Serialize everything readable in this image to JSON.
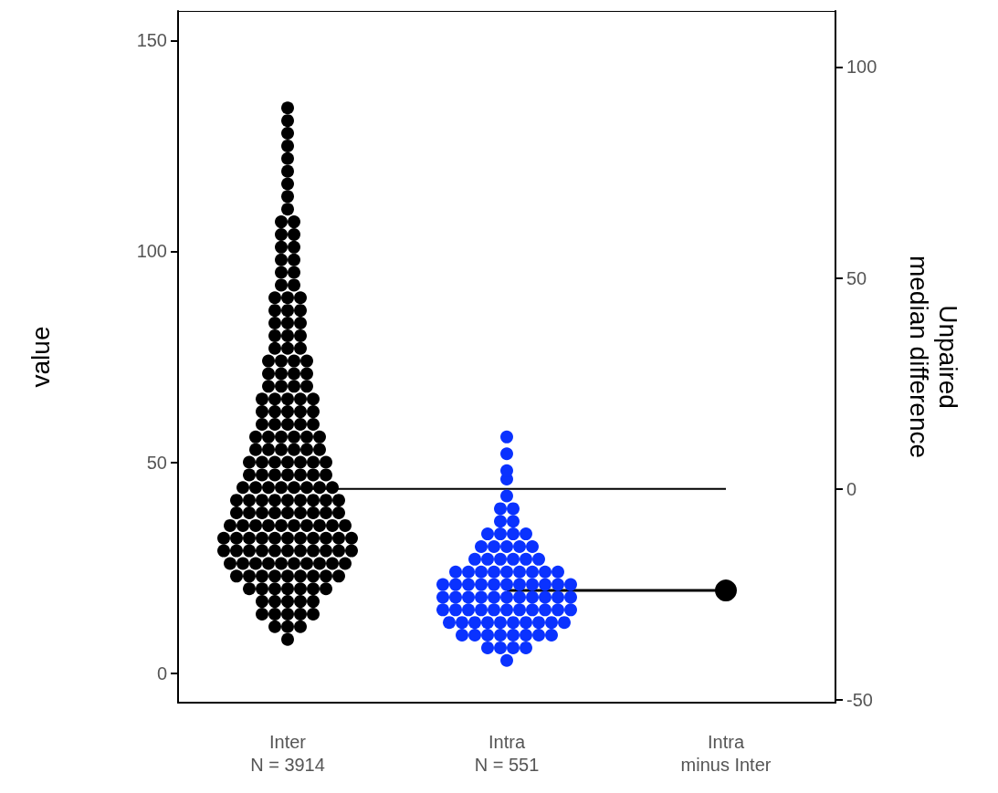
{
  "chart_data": {
    "type": "scatter",
    "ylabel": "value",
    "y2label": "Unpaired\nmedian difference",
    "categories": [
      "Inter\nN = 3914",
      "Intra\nN = 551",
      "Intra\nminus Inter"
    ],
    "ylim": [
      -7,
      157
    ],
    "yticks": [
      0,
      50,
      100,
      150
    ],
    "y2lim": [
      -50.7,
      113.3
    ],
    "y2ticks": [
      -50,
      0,
      50,
      100
    ],
    "grid": false,
    "marker": "circle",
    "series": [
      {
        "color": "#000000",
        "x": [
          "Inter\nN = 3914",
          "Inter\nN = 3914",
          "Inter\nN = 3914",
          "Inter\nN = 3914",
          "Inter\nN = 3914",
          "Inter\nN = 3914",
          "Inter\nN = 3914",
          "Inter\nN = 3914",
          "Inter\nN = 3914",
          "Inter\nN = 3914",
          "Inter\nN = 3914",
          "Inter\nN = 3914",
          "Inter\nN = 3914",
          "Inter\nN = 3914",
          "Inter\nN = 3914",
          "Inter\nN = 3914",
          "Inter\nN = 3914",
          "Inter\nN = 3914",
          "Inter\nN = 3914",
          "Inter\nN = 3914",
          "Inter\nN = 3914",
          "Inter\nN = 3914",
          "Inter\nN = 3914",
          "Inter\nN = 3914",
          "Inter\nN = 3914",
          "Inter\nN = 3914",
          "Inter\nN = 3914",
          "Inter\nN = 3914",
          "Inter\nN = 3914",
          "Inter\nN = 3914",
          "Inter\nN = 3914",
          "Inter\nN = 3914",
          "Inter\nN = 3914",
          "Inter\nN = 3914",
          "Inter\nN = 3914",
          "Inter\nN = 3914",
          "Inter\nN = 3914",
          "Inter\nN = 3914",
          "Inter\nN = 3914",
          "Inter\nN = 3914",
          "Inter\nN = 3914",
          "Inter\nN = 3914",
          "Inter\nN = 3914",
          "Inter\nN = 3914",
          "Inter\nN = 3914",
          "Inter\nN = 3914",
          "Inter\nN = 3914",
          "Inter\nN = 3914",
          "Inter\nN = 3914",
          "Inter\nN = 3914",
          "Inter\nN = 3914",
          "Inter\nN = 3914",
          "Inter\nN = 3914",
          "Inter\nN = 3914",
          "Inter\nN = 3914",
          "Inter\nN = 3914",
          "Inter\nN = 3914",
          "Inter\nN = 3914",
          "Inter\nN = 3914",
          "Inter\nN = 3914",
          "Inter\nN = 3914",
          "Inter\nN = 3914",
          "Inter\nN = 3914",
          "Inter\nN = 3914",
          "Inter\nN = 3914",
          "Inter\nN = 3914",
          "Inter\nN = 3914",
          "Inter\nN = 3914",
          "Inter\nN = 3914",
          "Inter\nN = 3914",
          "Inter\nN = 3914",
          "Inter\nN = 3914",
          "Inter\nN = 3914",
          "Inter\nN = 3914",
          "Inter\nN = 3914",
          "Inter\nN = 3914",
          "Inter\nN = 3914",
          "Inter\nN = 3914",
          "Inter\nN = 3914",
          "Inter\nN = 3914",
          "Inter\nN = 3914",
          "Inter\nN = 3914",
          "Inter\nN = 3914",
          "Inter\nN = 3914",
          "Inter\nN = 3914",
          "Inter\nN = 3914",
          "Inter\nN = 3914",
          "Inter\nN = 3914",
          "Inter\nN = 3914",
          "Inter\nN = 3914",
          "Inter\nN = 3914",
          "Inter\nN = 3914",
          "Inter\nN = 3914",
          "Inter\nN = 3914",
          "Inter\nN = 3914",
          "Inter\nN = 3914",
          "Inter\nN = 3914",
          "Inter\nN = 3914",
          "Inter\nN = 3914",
          "Inter\nN = 3914",
          "Inter\nN = 3914",
          "Inter\nN = 3914",
          "Inter\nN = 3914",
          "Inter\nN = 3914",
          "Inter\nN = 3914",
          "Inter\nN = 3914",
          "Inter\nN = 3914",
          "Inter\nN = 3914",
          "Inter\nN = 3914",
          "Inter\nN = 3914",
          "Inter\nN = 3914",
          "Inter\nN = 3914",
          "Inter\nN = 3914",
          "Inter\nN = 3914",
          "Inter\nN = 3914",
          "Inter\nN = 3914",
          "Inter\nN = 3914",
          "Inter\nN = 3914",
          "Inter\nN = 3914",
          "Inter\nN = 3914",
          "Inter\nN = 3914",
          "Inter\nN = 3914",
          "Inter\nN = 3914",
          "Inter\nN = 3914",
          "Inter\nN = 3914",
          "Inter\nN = 3914",
          "Inter\nN = 3914",
          "Inter\nN = 3914",
          "Inter\nN = 3914",
          "Inter\nN = 3914",
          "Inter\nN = 3914",
          "Inter\nN = 3914",
          "Inter\nN = 3914",
          "Inter\nN = 3914",
          "Inter\nN = 3914",
          "Inter\nN = 3914",
          "Inter\nN = 3914",
          "Inter\nN = 3914",
          "Inter\nN = 3914",
          "Inter\nN = 3914",
          "Inter\nN = 3914",
          "Inter\nN = 3914",
          "Inter\nN = 3914",
          "Inter\nN = 3914",
          "Inter\nN = 3914",
          "Inter\nN = 3914",
          "Inter\nN = 3914",
          "Inter\nN = 3914",
          "Inter\nN = 3914",
          "Inter\nN = 3914",
          "Inter\nN = 3914",
          "Inter\nN = 3914",
          "Inter\nN = 3914",
          "Inter\nN = 3914",
          "Inter\nN = 3914",
          "Inter\nN = 3914",
          "Inter\nN = 3914",
          "Inter\nN = 3914",
          "Inter\nN = 3914",
          "Inter\nN = 3914",
          "Inter\nN = 3914",
          "Inter\nN = 3914",
          "Inter\nN = 3914",
          "Inter\nN = 3914",
          "Inter\nN = 3914",
          "Inter\nN = 3914",
          "Inter\nN = 3914",
          "Inter\nN = 3914",
          "Inter\nN = 3914",
          "Inter\nN = 3914",
          "Inter\nN = 3914",
          "Inter\nN = 3914",
          "Inter\nN = 3914",
          "Inter\nN = 3914",
          "Inter\nN = 3914",
          "Inter\nN = 3914",
          "Inter\nN = 3914",
          "Inter\nN = 3914",
          "Inter\nN = 3914",
          "Inter\nN = 3914",
          "Inter\nN = 3914",
          "Inter\nN = 3914",
          "Inter\nN = 3914",
          "Inter\nN = 3914",
          "Inter\nN = 3914",
          "Inter\nN = 3914",
          "Inter\nN = 3914"
        ],
        "values": [
          8,
          11,
          11,
          11,
          14,
          14,
          14,
          14,
          14,
          17,
          17,
          17,
          17,
          17,
          20,
          20,
          20,
          20,
          20,
          20,
          20,
          23,
          23,
          23,
          23,
          23,
          23,
          23,
          23,
          23,
          26,
          26,
          26,
          26,
          26,
          26,
          26,
          26,
          26,
          26,
          29,
          29,
          29,
          29,
          29,
          29,
          29,
          29,
          29,
          29,
          29,
          32,
          32,
          32,
          32,
          32,
          32,
          32,
          32,
          32,
          32,
          32,
          35,
          35,
          35,
          35,
          35,
          35,
          35,
          35,
          35,
          35,
          38,
          38,
          38,
          38,
          38,
          38,
          38,
          38,
          38,
          41,
          41,
          41,
          41,
          41,
          41,
          41,
          41,
          41,
          44,
          44,
          44,
          44,
          44,
          44,
          44,
          44,
          47,
          47,
          47,
          47,
          47,
          47,
          47,
          50,
          50,
          50,
          50,
          50,
          50,
          50,
          53,
          53,
          53,
          53,
          53,
          53,
          56,
          56,
          56,
          56,
          56,
          56,
          59,
          59,
          59,
          59,
          59,
          62,
          62,
          62,
          62,
          62,
          65,
          65,
          65,
          65,
          65,
          68,
          68,
          68,
          68,
          71,
          71,
          71,
          71,
          74,
          74,
          74,
          74,
          77,
          77,
          77,
          80,
          80,
          80,
          83,
          83,
          83,
          86,
          86,
          86,
          89,
          89,
          89,
          92,
          92,
          95,
          95,
          98,
          98,
          101,
          101,
          104,
          104,
          107,
          107,
          110,
          113,
          116,
          119,
          122,
          125,
          128,
          131,
          134
        ]
      },
      {
        "color": "#0a32ff",
        "x": [
          "Intra\nN = 551",
          "Intra\nN = 551",
          "Intra\nN = 551",
          "Intra\nN = 551",
          "Intra\nN = 551",
          "Intra\nN = 551",
          "Intra\nN = 551",
          "Intra\nN = 551",
          "Intra\nN = 551",
          "Intra\nN = 551",
          "Intra\nN = 551",
          "Intra\nN = 551",
          "Intra\nN = 551",
          "Intra\nN = 551",
          "Intra\nN = 551",
          "Intra\nN = 551",
          "Intra\nN = 551",
          "Intra\nN = 551",
          "Intra\nN = 551",
          "Intra\nN = 551",
          "Intra\nN = 551",
          "Intra\nN = 551",
          "Intra\nN = 551",
          "Intra\nN = 551",
          "Intra\nN = 551",
          "Intra\nN = 551",
          "Intra\nN = 551",
          "Intra\nN = 551",
          "Intra\nN = 551",
          "Intra\nN = 551",
          "Intra\nN = 551",
          "Intra\nN = 551",
          "Intra\nN = 551",
          "Intra\nN = 551",
          "Intra\nN = 551",
          "Intra\nN = 551",
          "Intra\nN = 551",
          "Intra\nN = 551",
          "Intra\nN = 551",
          "Intra\nN = 551",
          "Intra\nN = 551",
          "Intra\nN = 551",
          "Intra\nN = 551",
          "Intra\nN = 551",
          "Intra\nN = 551",
          "Intra\nN = 551",
          "Intra\nN = 551",
          "Intra\nN = 551",
          "Intra\nN = 551",
          "Intra\nN = 551",
          "Intra\nN = 551",
          "Intra\nN = 551",
          "Intra\nN = 551",
          "Intra\nN = 551",
          "Intra\nN = 551",
          "Intra\nN = 551",
          "Intra\nN = 551",
          "Intra\nN = 551",
          "Intra\nN = 551",
          "Intra\nN = 551",
          "Intra\nN = 551",
          "Intra\nN = 551",
          "Intra\nN = 551",
          "Intra\nN = 551",
          "Intra\nN = 551",
          "Intra\nN = 551",
          "Intra\nN = 551",
          "Intra\nN = 551",
          "Intra\nN = 551",
          "Intra\nN = 551",
          "Intra\nN = 551",
          "Intra\nN = 551",
          "Intra\nN = 551",
          "Intra\nN = 551",
          "Intra\nN = 551",
          "Intra\nN = 551",
          "Intra\nN = 551",
          "Intra\nN = 551",
          "Intra\nN = 551",
          "Intra\nN = 551",
          "Intra\nN = 551",
          "Intra\nN = 551",
          "Intra\nN = 551",
          "Intra\nN = 551",
          "Intra\nN = 551",
          "Intra\nN = 551",
          "Intra\nN = 551",
          "Intra\nN = 551",
          "Intra\nN = 551"
        ],
        "values": [
          3,
          6,
          6,
          6,
          6,
          9,
          9,
          9,
          9,
          9,
          9,
          9,
          9,
          12,
          12,
          12,
          12,
          12,
          12,
          12,
          12,
          12,
          12,
          15,
          15,
          15,
          15,
          15,
          15,
          15,
          15,
          15,
          15,
          15,
          18,
          18,
          18,
          18,
          18,
          18,
          18,
          18,
          18,
          18,
          18,
          21,
          21,
          21,
          21,
          21,
          21,
          21,
          21,
          21,
          21,
          21,
          24,
          24,
          24,
          24,
          24,
          24,
          24,
          24,
          24,
          27,
          27,
          27,
          27,
          27,
          27,
          30,
          30,
          30,
          30,
          30,
          33,
          33,
          33,
          33,
          36,
          36,
          39,
          39,
          42,
          46,
          48,
          52,
          56
        ]
      },
      {
        "type": "line",
        "marker": "none",
        "axis": "y2",
        "color": "#000000",
        "x": [
          "Inter\nN = 3914",
          "Intra\nminus Inter"
        ],
        "values": [
          0,
          0
        ]
      },
      {
        "type": "line",
        "marker": "none",
        "axis": "y2",
        "color": "#000000",
        "x": [
          "Intra\nN = 551",
          "Intra\nminus Inter"
        ],
        "values": [
          -24.1,
          -24.1
        ]
      },
      {
        "type": "scatter",
        "axis": "y2",
        "color": "#000000",
        "x": [
          "Intra\nminus Inter"
        ],
        "values": [
          -24.1
        ]
      }
    ]
  }
}
